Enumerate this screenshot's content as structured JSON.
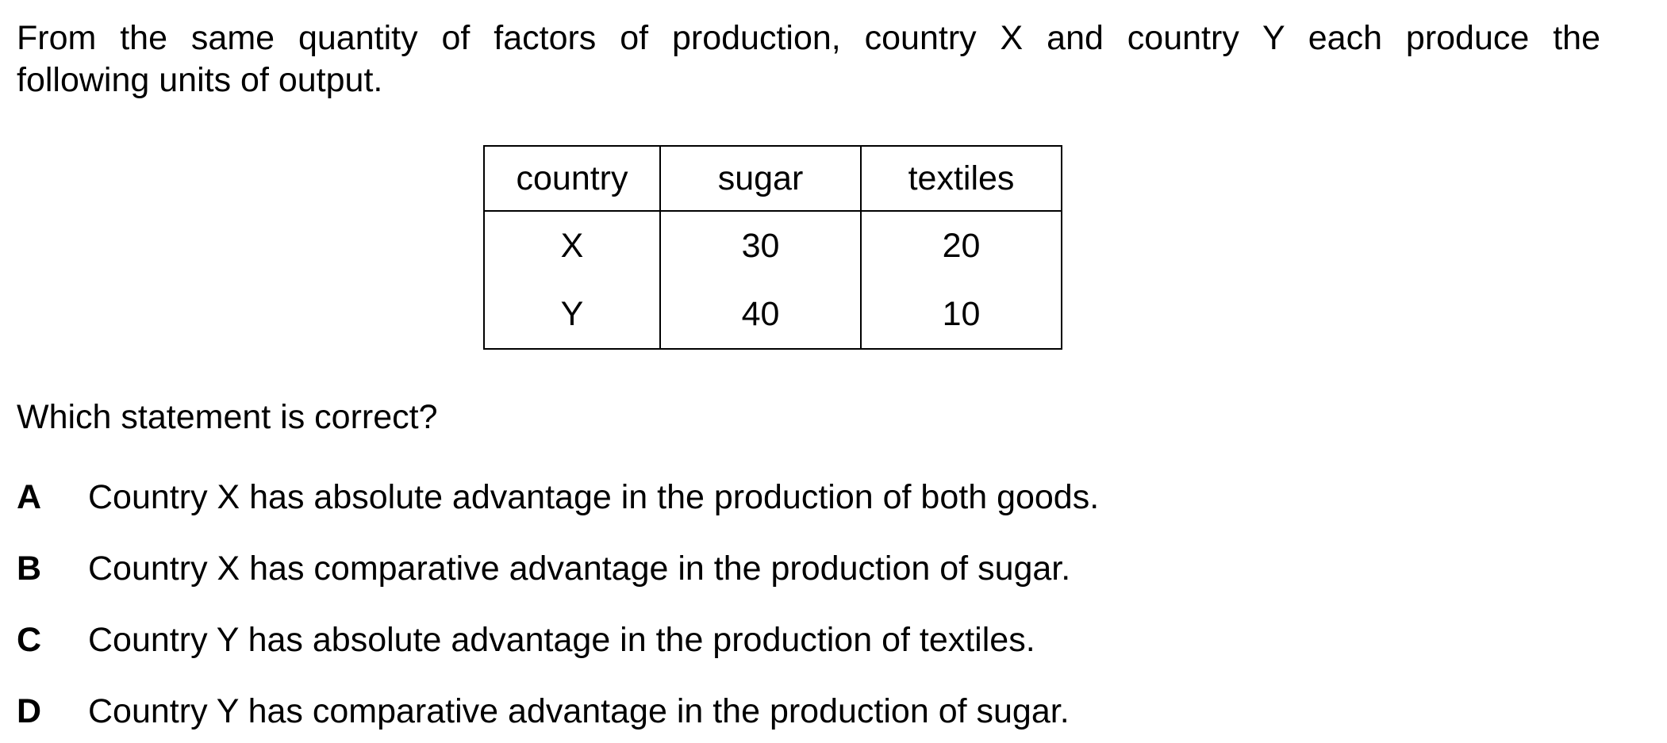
{
  "intro": {
    "line1": "From the same quantity of factors of production, country X and country Y each produce the",
    "line2": "following units of output."
  },
  "table": {
    "headers": [
      "country",
      "sugar",
      "textiles"
    ],
    "rows": [
      [
        "X",
        "30",
        "20"
      ],
      [
        "Y",
        "40",
        "10"
      ]
    ]
  },
  "question": "Which statement is correct?",
  "options": [
    {
      "letter": "A",
      "text": "Country X has absolute advantage in the production of both goods."
    },
    {
      "letter": "B",
      "text": "Country X has comparative advantage in the production of sugar."
    },
    {
      "letter": "C",
      "text": "Country Y has absolute advantage in the production of textiles."
    },
    {
      "letter": "D",
      "text": "Country Y has comparative advantage in the production of sugar."
    }
  ]
}
